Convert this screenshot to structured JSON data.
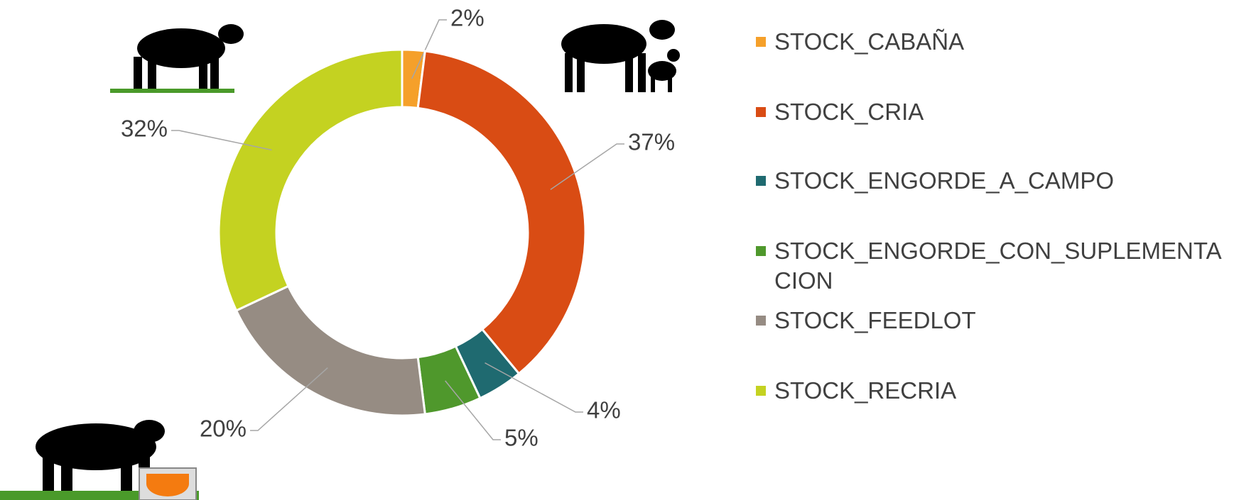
{
  "chart_data": {
    "type": "donut",
    "categories": [
      "STOCK_CABAÑA",
      "STOCK_CRIA",
      "STOCK_ENGORDE_A_CAMPO",
      "STOCK_ENGORDE_CON_SUPLEMENTACION",
      "STOCK_FEEDLOT",
      "STOCK_RECRIA"
    ],
    "values": [
      2,
      37,
      4,
      5,
      20,
      32
    ],
    "value_labels": [
      "2%",
      "37%",
      "4%",
      "5%",
      "20%",
      "32%"
    ],
    "colors": [
      "#f5a02a",
      "#d94c14",
      "#1f6a70",
      "#4f982c",
      "#968c83",
      "#c4d221"
    ],
    "legend": "right"
  }
}
